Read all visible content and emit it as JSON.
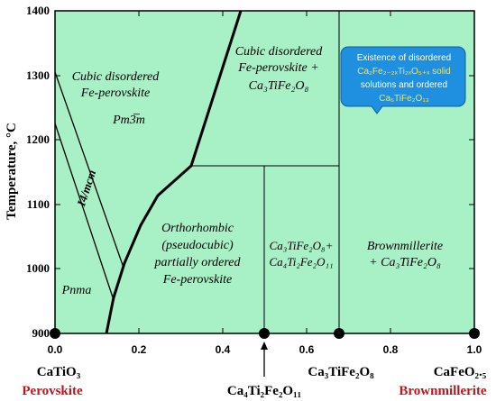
{
  "y_axis": {
    "label": "Temperature, °C",
    "ticks": [
      "900",
      "1000",
      "1100",
      "1200",
      "1300",
      "1400"
    ]
  },
  "x_axis": {
    "ticks": [
      "0.0",
      "0.2",
      "0.4",
      "0.6",
      "0.8",
      "1.0"
    ]
  },
  "regions": {
    "cubic_left_line1": "Cubic disordered",
    "cubic_left_line2": "Fe-perovskite",
    "pm3m": "Pm3̅m",
    "i4mcm": "I4/mcm",
    "pnma": "Pnma",
    "cubic_mid_line1": "Cubic disordered",
    "cubic_mid_line2": "Fe-perovskite +",
    "cubic_mid_line3": "Ca₃TiFe₂O₈",
    "ortho_line1": "Orthorhombic",
    "ortho_line2": "(pseudocubic)",
    "ortho_line3": "partially ordered",
    "ortho_line4": "Fe-perovskite",
    "mid_low_line1": "Ca₃TiFe₂O₈+",
    "mid_low_line2": "Ca₄Ti₂Fe₂O₁₁",
    "brown_line1": "Brownmillerite",
    "brown_line2": "+ Ca₃TiFe₂O₈"
  },
  "callout": {
    "line1": "Existence of disordered",
    "line2": "Ca₂Fe₂₋₂ₓTi₂ₓO₅₊ₓ solid",
    "line3": "solutions and ordered",
    "line4": "Ca₅TiFe₂O₁₃"
  },
  "compounds": {
    "catio3": "CaTiO₃",
    "perovskite": "Perovskite",
    "ca4": "Ca₄Ti₂Fe₂O₁₁",
    "ca3": "Ca₃TiFe₂O₈",
    "cafeo": "CaFeO₂.₅",
    "brownmillerite": "Brownmillerite"
  },
  "colors": {
    "field": "#a8f0c6",
    "line": "#000000",
    "callout_fill": "#1f8fe0",
    "callout_text_gray": "#ffffff",
    "callout_text_yellow": "#ffe34a",
    "mineral_label": "#c0141c"
  }
}
